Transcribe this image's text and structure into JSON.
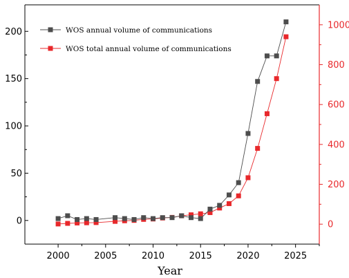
{
  "chart_data": {
    "type": "line",
    "xlabel": "Year",
    "xlim": [
      1996.5,
      2027.5
    ],
    "x_ticks": [
      2000,
      2005,
      2010,
      2015,
      2020,
      2025
    ],
    "grid": false,
    "legend_position": "top-left",
    "y_left": {
      "lim": [
        -25,
        228
      ],
      "ticks": [
        0,
        50,
        100,
        150,
        200
      ],
      "color": "#000000"
    },
    "y_right": {
      "lim": [
        -100,
        1100
      ],
      "ticks": [
        0,
        200,
        400,
        600,
        800,
        1000
      ],
      "color": "#e8282b"
    },
    "series": [
      {
        "name": "WOS annual volume of communications",
        "axis": "left",
        "color": "#4d4d4d",
        "x": [
          2000,
          2001,
          2002,
          2003,
          2004,
          2006,
          2007,
          2008,
          2009,
          2010,
          2011,
          2012,
          2013,
          2014,
          2015,
          2016,
          2017,
          2018,
          2019,
          2020,
          2021,
          2022,
          2023,
          2024
        ],
        "y": [
          2,
          5,
          1,
          2,
          1,
          3,
          2,
          1,
          3,
          2,
          3,
          3,
          5,
          3,
          2,
          12,
          16,
          27,
          40,
          92,
          147,
          174,
          174,
          210
        ]
      },
      {
        "name": "WOS total annual volume of communications",
        "axis": "right",
        "color": "#e8282b",
        "x": [
          2000,
          2001,
          2002,
          2003,
          2004,
          2006,
          2007,
          2008,
          2009,
          2010,
          2011,
          2012,
          2013,
          2014,
          2015,
          2016,
          2017,
          2018,
          2019,
          2020,
          2021,
          2022,
          2023,
          2024
        ],
        "y": [
          1,
          4,
          6,
          7,
          8,
          14,
          17,
          19,
          24,
          26,
          31,
          34,
          42,
          47,
          52,
          58,
          81,
          103,
          142,
          233,
          380,
          554,
          730,
          940
        ]
      }
    ]
  }
}
